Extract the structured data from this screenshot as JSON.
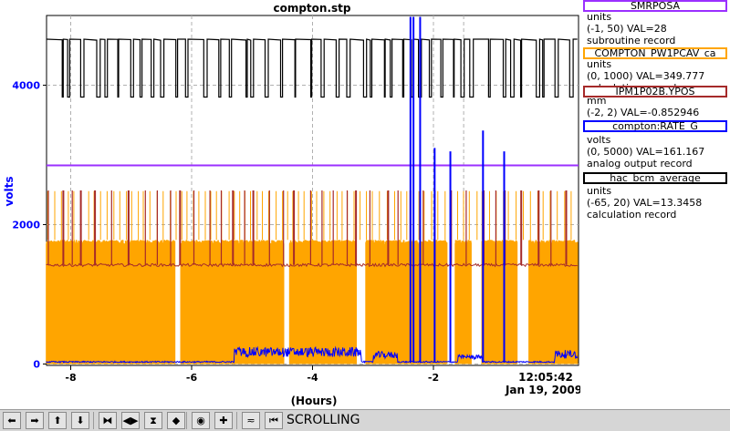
{
  "window": {
    "title": "compton.stp"
  },
  "chart_data": {
    "type": "line",
    "title": "compton.stp",
    "ylabel": "volts",
    "xlabel": "(Hours)",
    "xlim": [
      -8.4,
      0.4
    ],
    "ylim": [
      -20,
      5000
    ],
    "x_ticks": [
      -8,
      -6,
      -4,
      -2
    ],
    "x_tick_labels": [
      "-8",
      "-6",
      "-4",
      "-2"
    ],
    "y_ticks": [
      0,
      2000,
      4000
    ],
    "y_tick_labels": [
      "0",
      "2000",
      "4000"
    ],
    "grid": true,
    "time_label": "12:05:42",
    "date_label": "Jan 19, 2009",
    "series": [
      {
        "name": "SMRPOSA",
        "color": "#9b30ff",
        "style": "flat",
        "level": 2850
      },
      {
        "name": "COMPTON_PW1PCAV_ca",
        "color": "#ffa500",
        "style": "filled-switch",
        "high": 1780,
        "low": 0
      },
      {
        "name": "IPM1P02B.YPOS",
        "color": "#a52a2a",
        "style": "spiky",
        "base": 1420,
        "peak": 2490
      },
      {
        "name": "compton:RATE_G",
        "color": "#0000ff",
        "style": "noise-spikes",
        "base": 20,
        "spikes": [
          [
            -2.38,
            4980
          ],
          [
            -2.33,
            4980
          ],
          [
            -2.22,
            4980
          ],
          [
            -1.98,
            3100
          ],
          [
            -1.72,
            3050
          ],
          [
            -1.18,
            3350
          ],
          [
            -0.83,
            3050
          ]
        ]
      },
      {
        "name": "hac_bcm_average",
        "color": "#000000",
        "style": "switch",
        "high": 4660,
        "low": 3830
      }
    ]
  },
  "legend": [
    {
      "name": "SMRPOSA",
      "color": "#9b30ff",
      "units": "units",
      "range_val": "(-1, 50) VAL=28",
      "rtype": "subroutine record"
    },
    {
      "name": "COMPTON_PW1PCAV_ca",
      "color": "#ffa500",
      "units": "units",
      "range_val": "(0, 1000) VAL=349.777",
      "rtype": "calculation record"
    },
    {
      "name": "IPM1P02B.YPOS",
      "color": "#a52a2a",
      "units": "mm",
      "range_val": "(-2, 2) VAL=-0.852946",
      "rtype": ""
    },
    {
      "name": "compton:RATE_G",
      "color": "#0000ff",
      "units": "volts",
      "range_val": "(0, 5000) VAL=161.167",
      "rtype": "analog output record"
    },
    {
      "name": "hac_bcm_average",
      "color": "#000000",
      "units": "units",
      "range_val": "(-65, 20) VAL=13.3458",
      "rtype": "calculation record"
    }
  ],
  "toolbar": {
    "buttons": [
      {
        "name": "pan-left-button",
        "icon": "arrow-left-icon",
        "glyph": "⬅"
      },
      {
        "name": "pan-right-button",
        "icon": "arrow-right-icon",
        "glyph": "➡"
      },
      {
        "name": "pan-up-button",
        "icon": "arrow-up-icon",
        "glyph": "⬆"
      },
      {
        "name": "pan-down-button",
        "icon": "arrow-down-icon",
        "glyph": "⬇"
      },
      {
        "name": "zoom-in-x-button",
        "icon": "zoom-in-x-icon",
        "glyph": "⧓"
      },
      {
        "name": "zoom-out-x-button",
        "icon": "zoom-out-x-icon",
        "glyph": "◀▶"
      },
      {
        "name": "zoom-in-y-button",
        "icon": "zoom-in-y-icon",
        "glyph": "⧗"
      },
      {
        "name": "zoom-out-y-button",
        "icon": "zoom-out-y-icon",
        "glyph": "◆"
      },
      {
        "name": "reset-button",
        "icon": "circle-icon",
        "glyph": "◉"
      },
      {
        "name": "add-button",
        "icon": "plus-icon",
        "glyph": "✚"
      },
      {
        "name": "auto-scale-button",
        "icon": "waveform-icon",
        "glyph": "≂"
      },
      {
        "name": "scroll-button",
        "icon": "scroll-icon",
        "glyph": "⏮"
      }
    ],
    "status": "SCROLLING"
  }
}
